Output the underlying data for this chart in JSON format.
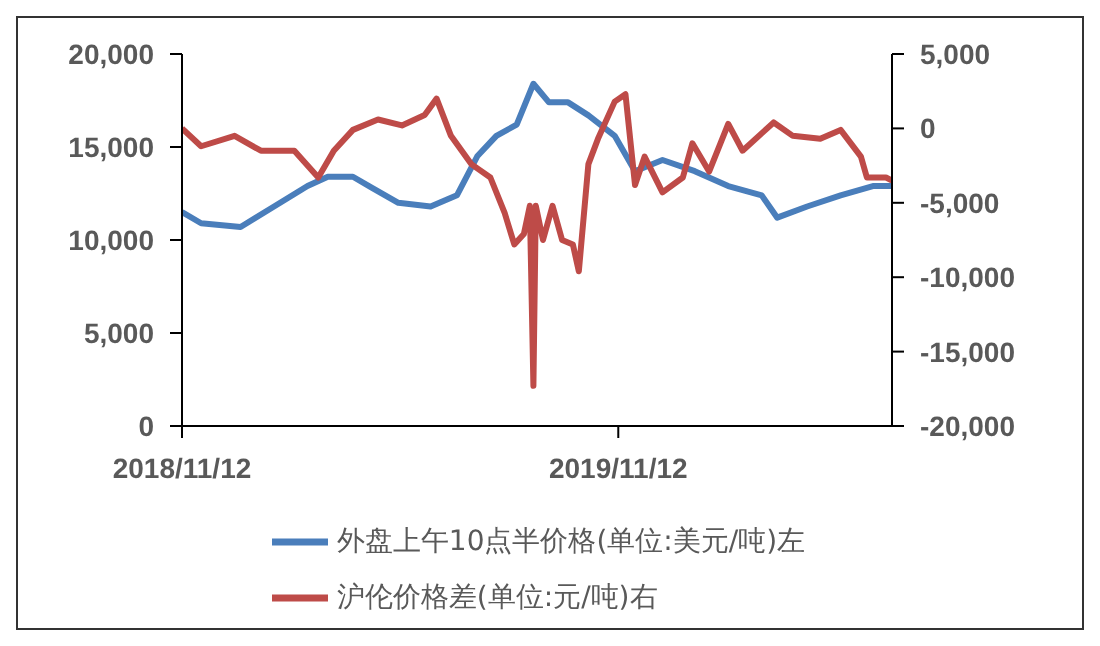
{
  "chart_data": {
    "type": "line",
    "legend": "bottom",
    "grid": false,
    "marker": "none",
    "line_style": "solid",
    "xlim": [
      "2018-11-12",
      "2020-06-28"
    ],
    "xticks": [
      {
        "value": "2018-11-12",
        "label": "2018/11/12"
      },
      {
        "value": "2019-11-12",
        "label": "2019/11/12"
      }
    ],
    "ylim": [
      0,
      20000
    ],
    "yticks": [
      0,
      {
        "value": 5000,
        "label": "5,000"
      },
      {
        "value": 10000,
        "label": "10,000"
      },
      {
        "value": 15000,
        "label": "15,000"
      },
      {
        "value": 20000,
        "label": "20,000"
      }
    ],
    "y2lim": [
      -20000,
      5000
    ],
    "y2ticks": [
      {
        "value": -20000,
        "label": "-20,000"
      },
      {
        "value": -15000,
        "label": "-15,000"
      },
      {
        "value": -10000,
        "label": "-10,000"
      },
      {
        "value": -5000,
        "label": "-5,000"
      },
      0,
      {
        "value": 5000,
        "label": "5,000"
      }
    ],
    "series": [
      {
        "name": "外盘上午10点半价格(单位:美元/吨)左",
        "color": "#4a7ebb",
        "x": [
          "2018-11-12",
          "2018-11-28",
          "2018-12-31",
          "2019-01-28",
          "2019-02-25",
          "2019-03-14",
          "2019-04-04",
          "2019-04-20",
          "2019-05-12",
          "2019-06-08",
          "2019-06-30",
          "2019-07-17",
          "2019-08-02",
          "2019-08-19",
          "2019-09-02",
          "2019-09-15",
          "2019-10-01",
          "2019-10-18",
          "2019-11-09",
          "2019-11-26",
          "2019-12-19",
          "2020-01-15",
          "2020-02-12",
          "2020-03-11",
          "2020-03-24",
          "2020-04-18",
          "2020-05-16",
          "2020-06-12",
          "2020-06-28"
        ],
        "values": [
          11500,
          10900,
          10700,
          11800,
          12900,
          13400,
          13400,
          12800,
          12000,
          11800,
          12400,
          14500,
          15600,
          16200,
          18400,
          17400,
          17400,
          16700,
          15600,
          13700,
          14300,
          13700,
          12900,
          12400,
          11200,
          11800,
          12400,
          12900,
          12900
        ]
      },
      {
        "name": "沪伦价格差(单位:元/吨)右",
        "color": "#be4b48",
        "axis": "y2",
        "x": [
          "2018-11-12",
          "2018-11-28",
          "2018-12-26",
          "2019-01-17",
          "2019-02-14",
          "2019-03-06",
          "2019-03-19",
          "2019-04-04",
          "2019-04-25",
          "2019-05-15",
          "2019-06-03",
          "2019-06-13",
          "2019-06-25",
          "2019-07-12",
          "2019-07-28",
          "2019-08-09",
          "2019-08-17",
          "2019-08-25",
          "2019-08-30",
          "2019-09-02",
          "2019-09-04",
          "2019-09-10",
          "2019-09-18",
          "2019-09-26",
          "2019-10-05",
          "2019-10-10",
          "2019-10-18",
          "2019-10-26",
          "2019-11-09",
          "2019-11-18",
          "2019-11-26",
          "2019-12-04",
          "2019-12-19",
          "2020-01-05",
          "2020-01-13",
          "2020-01-27",
          "2020-02-12",
          "2020-02-24",
          "2020-03-21",
          "2020-04-06",
          "2020-04-29",
          "2020-05-16",
          "2020-06-02",
          "2020-06-07",
          "2020-06-23",
          "2020-06-28"
        ],
        "values": [
          0,
          -1200,
          -500,
          -1500,
          -1500,
          -3300,
          -1500,
          -100,
          600,
          200,
          900,
          2000,
          -500,
          -2400,
          -3300,
          -5700,
          -7800,
          -7100,
          -5200,
          -17300,
          -5200,
          -7500,
          -5200,
          -7500,
          -7800,
          -9600,
          -2400,
          -700,
          1800,
          2300,
          -3800,
          -1900,
          -4300,
          -3300,
          -1000,
          -2900,
          300,
          -1500,
          400,
          -500,
          -700,
          -100,
          -1900,
          -3300,
          -3300,
          -3500
        ]
      }
    ]
  }
}
